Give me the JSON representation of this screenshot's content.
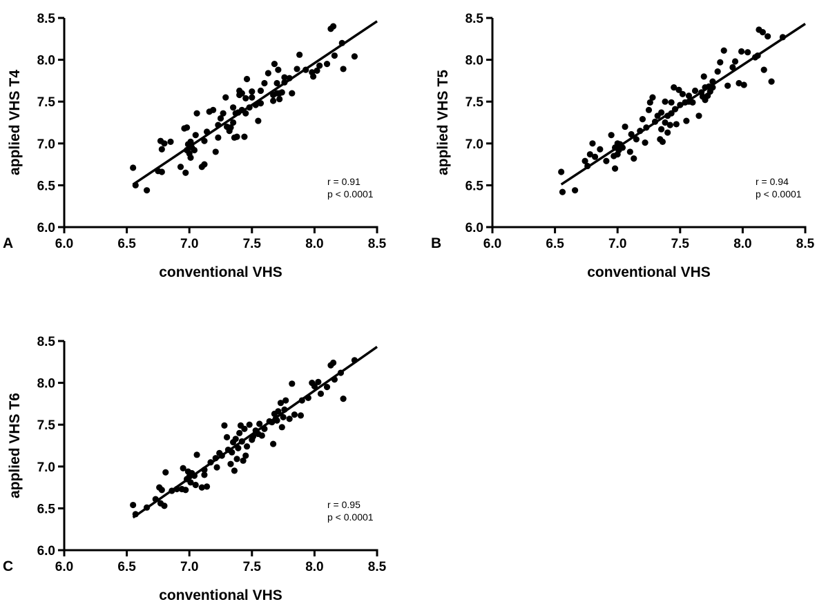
{
  "chart_data": [
    {
      "type": "scatter",
      "panel_label": "A",
      "xlabel": "conventional VHS",
      "ylabel": "applied VHS T4",
      "xlim": [
        6.0,
        8.5
      ],
      "ylim": [
        6.0,
        8.5
      ],
      "xticks": [
        "6.0",
        "6.5",
        "7.0",
        "7.5",
        "8.0",
        "8.5"
      ],
      "yticks": [
        "6.0",
        "6.5",
        "7.0",
        "7.5",
        "8.0",
        "8.5"
      ],
      "r_text": "r = 0.91",
      "p_text": "p < 0.0001",
      "regression": {
        "x": [
          6.55,
          8.5
        ],
        "y": [
          6.51,
          8.46
        ]
      },
      "points": [
        [
          6.55,
          6.71
        ],
        [
          6.57,
          6.5
        ],
        [
          6.66,
          6.44
        ],
        [
          6.75,
          6.67
        ],
        [
          6.78,
          6.66
        ],
        [
          6.77,
          7.03
        ],
        [
          6.8,
          7.0
        ],
        [
          6.85,
          7.02
        ],
        [
          6.78,
          6.93
        ],
        [
          6.93,
          6.72
        ],
        [
          6.96,
          7.18
        ],
        [
          6.98,
          7.19
        ],
        [
          6.97,
          6.65
        ],
        [
          6.98,
          6.92
        ],
        [
          6.99,
          6.99
        ],
        [
          7.0,
          6.88
        ],
        [
          7.01,
          7.02
        ],
        [
          7.02,
          6.95
        ],
        [
          7.01,
          6.83
        ],
        [
          7.04,
          6.92
        ],
        [
          7.05,
          7.1
        ],
        [
          7.06,
          7.36
        ],
        [
          7.1,
          6.72
        ],
        [
          7.12,
          6.75
        ],
        [
          7.12,
          7.03
        ],
        [
          7.14,
          7.14
        ],
        [
          7.16,
          7.38
        ],
        [
          7.19,
          7.4
        ],
        [
          7.21,
          6.9
        ],
        [
          7.23,
          7.07
        ],
        [
          7.23,
          7.22
        ],
        [
          7.25,
          7.3
        ],
        [
          7.27,
          7.36
        ],
        [
          7.29,
          7.55
        ],
        [
          7.3,
          7.2
        ],
        [
          7.32,
          7.15
        ],
        [
          7.33,
          7.19
        ],
        [
          7.35,
          7.25
        ],
        [
          7.35,
          7.43
        ],
        [
          7.36,
          7.07
        ],
        [
          7.37,
          7.36
        ],
        [
          7.38,
          7.08
        ],
        [
          7.39,
          7.37
        ],
        [
          7.4,
          7.58
        ],
        [
          7.4,
          7.63
        ],
        [
          7.42,
          7.4
        ],
        [
          7.42,
          7.6
        ],
        [
          7.44,
          7.08
        ],
        [
          7.45,
          7.36
        ],
        [
          7.45,
          7.54
        ],
        [
          7.46,
          7.77
        ],
        [
          7.48,
          7.43
        ],
        [
          7.5,
          7.55
        ],
        [
          7.5,
          7.62
        ],
        [
          7.53,
          7.46
        ],
        [
          7.55,
          7.27
        ],
        [
          7.57,
          7.48
        ],
        [
          7.57,
          7.63
        ],
        [
          7.6,
          7.72
        ],
        [
          7.63,
          7.84
        ],
        [
          7.67,
          7.58
        ],
        [
          7.67,
          7.51
        ],
        [
          7.68,
          7.95
        ],
        [
          7.7,
          7.72
        ],
        [
          7.7,
          7.6
        ],
        [
          7.71,
          7.88
        ],
        [
          7.72,
          7.6
        ],
        [
          7.72,
          7.53
        ],
        [
          7.74,
          7.61
        ],
        [
          7.76,
          7.73
        ],
        [
          7.76,
          7.79
        ],
        [
          7.8,
          7.78
        ],
        [
          7.82,
          7.6
        ],
        [
          7.86,
          7.89
        ],
        [
          7.88,
          8.06
        ],
        [
          7.93,
          7.88
        ],
        [
          7.98,
          7.85
        ],
        [
          7.99,
          7.8
        ],
        [
          8.02,
          7.87
        ],
        [
          8.04,
          7.93
        ],
        [
          8.1,
          7.95
        ],
        [
          8.13,
          8.37
        ],
        [
          8.15,
          8.4
        ],
        [
          8.16,
          8.05
        ],
        [
          8.22,
          8.2
        ],
        [
          8.23,
          7.89
        ],
        [
          8.32,
          8.04
        ]
      ]
    },
    {
      "type": "scatter",
      "panel_label": "B",
      "xlabel": "conventional VHS",
      "ylabel": "applied VHS T5",
      "xlim": [
        6.0,
        8.5
      ],
      "ylim": [
        6.0,
        8.5
      ],
      "xticks": [
        "6.0",
        "6.5",
        "7.0",
        "7.5",
        "8.0",
        "8.5"
      ],
      "yticks": [
        "6.0",
        "6.5",
        "7.0",
        "7.5",
        "8.0",
        "8.5"
      ],
      "r_text": "r = 0.94",
      "p_text": "p < 0.0001",
      "regression": {
        "x": [
          6.55,
          8.5
        ],
        "y": [
          6.51,
          8.43
        ]
      },
      "points": [
        [
          6.55,
          6.66
        ],
        [
          6.56,
          6.42
        ],
        [
          6.66,
          6.44
        ],
        [
          6.74,
          6.79
        ],
        [
          6.76,
          6.73
        ],
        [
          6.78,
          6.87
        ],
        [
          6.8,
          7.0
        ],
        [
          6.82,
          6.84
        ],
        [
          6.86,
          6.93
        ],
        [
          6.91,
          6.79
        ],
        [
          6.95,
          7.1
        ],
        [
          6.97,
          6.85
        ],
        [
          6.98,
          6.7
        ],
        [
          6.98,
          6.95
        ],
        [
          7.0,
          7.0
        ],
        [
          7.0,
          6.87
        ],
        [
          7.01,
          6.92
        ],
        [
          7.02,
          6.99
        ],
        [
          7.04,
          6.95
        ],
        [
          7.06,
          7.2
        ],
        [
          7.1,
          6.9
        ],
        [
          7.11,
          7.11
        ],
        [
          7.13,
          6.82
        ],
        [
          7.15,
          7.05
        ],
        [
          7.18,
          7.15
        ],
        [
          7.2,
          7.29
        ],
        [
          7.22,
          7.01
        ],
        [
          7.23,
          7.19
        ],
        [
          7.25,
          7.4
        ],
        [
          7.26,
          7.49
        ],
        [
          7.28,
          7.55
        ],
        [
          7.3,
          7.26
        ],
        [
          7.32,
          7.33
        ],
        [
          7.34,
          7.05
        ],
        [
          7.35,
          7.37
        ],
        [
          7.35,
          7.17
        ],
        [
          7.36,
          7.02
        ],
        [
          7.38,
          7.25
        ],
        [
          7.38,
          7.5
        ],
        [
          7.4,
          7.13
        ],
        [
          7.4,
          7.33
        ],
        [
          7.42,
          7.22
        ],
        [
          7.43,
          7.36
        ],
        [
          7.43,
          7.49
        ],
        [
          7.45,
          7.67
        ],
        [
          7.46,
          7.41
        ],
        [
          7.47,
          7.23
        ],
        [
          7.49,
          7.64
        ],
        [
          7.5,
          7.46
        ],
        [
          7.52,
          7.59
        ],
        [
          7.54,
          7.49
        ],
        [
          7.55,
          7.27
        ],
        [
          7.57,
          7.5
        ],
        [
          7.57,
          7.57
        ],
        [
          7.6,
          7.49
        ],
        [
          7.62,
          7.63
        ],
        [
          7.65,
          7.33
        ],
        [
          7.67,
          7.61
        ],
        [
          7.68,
          7.56
        ],
        [
          7.69,
          7.8
        ],
        [
          7.7,
          7.52
        ],
        [
          7.7,
          7.67
        ],
        [
          7.72,
          7.57
        ],
        [
          7.73,
          7.68
        ],
        [
          7.74,
          7.62
        ],
        [
          7.76,
          7.67
        ],
        [
          7.76,
          7.74
        ],
        [
          7.8,
          7.86
        ],
        [
          7.82,
          7.97
        ],
        [
          7.85,
          8.11
        ],
        [
          7.88,
          7.69
        ],
        [
          7.92,
          7.91
        ],
        [
          7.94,
          7.98
        ],
        [
          7.97,
          7.72
        ],
        [
          7.99,
          8.1
        ],
        [
          8.01,
          7.7
        ],
        [
          8.04,
          8.09
        ],
        [
          8.1,
          8.03
        ],
        [
          8.12,
          8.05
        ],
        [
          8.13,
          8.36
        ],
        [
          8.16,
          8.33
        ],
        [
          8.17,
          7.88
        ],
        [
          8.2,
          8.28
        ],
        [
          8.23,
          7.74
        ],
        [
          8.32,
          8.27
        ]
      ]
    },
    {
      "type": "scatter",
      "panel_label": "C",
      "xlabel": "conventional VHS",
      "ylabel": "applied VHS T6",
      "xlim": [
        6.0,
        8.5
      ],
      "ylim": [
        6.0,
        8.5
      ],
      "xticks": [
        "6.0",
        "6.5",
        "7.0",
        "7.5",
        "8.0",
        "8.5"
      ],
      "yticks": [
        "6.0",
        "6.5",
        "7.0",
        "7.5",
        "8.0",
        "8.5"
      ],
      "r_text": "r = 0.95",
      "p_text": "p < 0.0001",
      "regression": {
        "x": [
          6.55,
          8.5
        ],
        "y": [
          6.39,
          8.43
        ]
      },
      "points": [
        [
          6.55,
          6.54
        ],
        [
          6.57,
          6.43
        ],
        [
          6.66,
          6.51
        ],
        [
          6.73,
          6.61
        ],
        [
          6.76,
          6.75
        ],
        [
          6.77,
          6.56
        ],
        [
          6.78,
          6.72
        ],
        [
          6.8,
          6.53
        ],
        [
          6.81,
          6.93
        ],
        [
          6.86,
          6.71
        ],
        [
          6.9,
          6.73
        ],
        [
          6.94,
          6.73
        ],
        [
          6.95,
          6.98
        ],
        [
          6.97,
          6.72
        ],
        [
          6.98,
          6.85
        ],
        [
          6.99,
          6.94
        ],
        [
          7.0,
          6.88
        ],
        [
          7.01,
          6.81
        ],
        [
          7.02,
          6.92
        ],
        [
          7.04,
          6.89
        ],
        [
          7.05,
          6.78
        ],
        [
          7.06,
          7.14
        ],
        [
          7.1,
          6.75
        ],
        [
          7.12,
          6.96
        ],
        [
          7.12,
          6.9
        ],
        [
          7.14,
          6.76
        ],
        [
          7.17,
          7.05
        ],
        [
          7.21,
          7.1
        ],
        [
          7.22,
          6.99
        ],
        [
          7.24,
          7.16
        ],
        [
          7.26,
          7.13
        ],
        [
          7.28,
          7.49
        ],
        [
          7.3,
          7.35
        ],
        [
          7.31,
          7.2
        ],
        [
          7.33,
          7.03
        ],
        [
          7.34,
          7.17
        ],
        [
          7.35,
          7.29
        ],
        [
          7.36,
          6.95
        ],
        [
          7.37,
          7.33
        ],
        [
          7.38,
          7.09
        ],
        [
          7.39,
          7.22
        ],
        [
          7.4,
          7.4
        ],
        [
          7.41,
          7.49
        ],
        [
          7.42,
          7.3
        ],
        [
          7.43,
          7.07
        ],
        [
          7.44,
          7.45
        ],
        [
          7.45,
          7.13
        ],
        [
          7.46,
          7.24
        ],
        [
          7.48,
          7.5
        ],
        [
          7.5,
          7.32
        ],
        [
          7.51,
          7.36
        ],
        [
          7.53,
          7.43
        ],
        [
          7.55,
          7.39
        ],
        [
          7.56,
          7.51
        ],
        [
          7.58,
          7.37
        ],
        [
          7.6,
          7.45
        ],
        [
          7.64,
          7.54
        ],
        [
          7.66,
          7.53
        ],
        [
          7.67,
          7.27
        ],
        [
          7.68,
          7.63
        ],
        [
          7.69,
          7.57
        ],
        [
          7.7,
          7.55
        ],
        [
          7.71,
          7.66
        ],
        [
          7.73,
          7.76
        ],
        [
          7.74,
          7.47
        ],
        [
          7.75,
          7.59
        ],
        [
          7.76,
          7.68
        ],
        [
          7.77,
          7.79
        ],
        [
          7.8,
          7.57
        ],
        [
          7.82,
          7.99
        ],
        [
          7.84,
          7.62
        ],
        [
          7.89,
          7.61
        ],
        [
          7.9,
          7.79
        ],
        [
          7.95,
          7.82
        ],
        [
          7.98,
          8.0
        ],
        [
          8.0,
          7.96
        ],
        [
          8.03,
          8.01
        ],
        [
          8.05,
          7.87
        ],
        [
          8.1,
          7.95
        ],
        [
          8.13,
          8.21
        ],
        [
          8.15,
          8.24
        ],
        [
          8.16,
          8.04
        ],
        [
          8.21,
          8.12
        ],
        [
          8.23,
          7.81
        ],
        [
          8.32,
          8.27
        ]
      ]
    }
  ]
}
